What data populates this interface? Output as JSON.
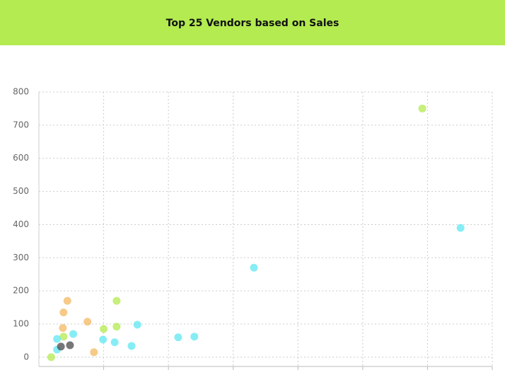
{
  "chart_data": {
    "type": "scatter",
    "title": "Top 25 Vendors based on Sales",
    "xlim": [
      0,
      7
    ],
    "xticks": [
      1,
      2,
      3,
      4,
      5,
      6,
      7
    ],
    "ylim": [
      -28,
      800
    ],
    "yticks": [
      0,
      100,
      200,
      300,
      400,
      500,
      600,
      700,
      800
    ],
    "grid": true,
    "series": [
      {
        "color": "#b3ea4f",
        "x": [
          5.92,
          0.19,
          1.2,
          1.2,
          1.0,
          0.38
        ],
        "values": [
          750,
          0,
          170,
          92,
          85,
          62
        ]
      },
      {
        "color": "#5fe7f2",
        "x": [
          6.51,
          3.32,
          2.15,
          2.4,
          1.52,
          1.17,
          0.99,
          1.43,
          0.53,
          0.28,
          0.28
        ],
        "values": [
          390,
          270,
          60,
          62,
          98,
          45,
          53,
          34,
          70,
          55,
          23
        ]
      },
      {
        "color": "#f3b860",
        "x": [
          0.44,
          0.38,
          0.37,
          0.75,
          0.85
        ],
        "values": [
          170,
          135,
          88,
          107,
          15
        ]
      },
      {
        "color": "#4a4a4a",
        "x": [
          0.34,
          0.48
        ],
        "values": [
          32,
          36
        ]
      }
    ]
  }
}
